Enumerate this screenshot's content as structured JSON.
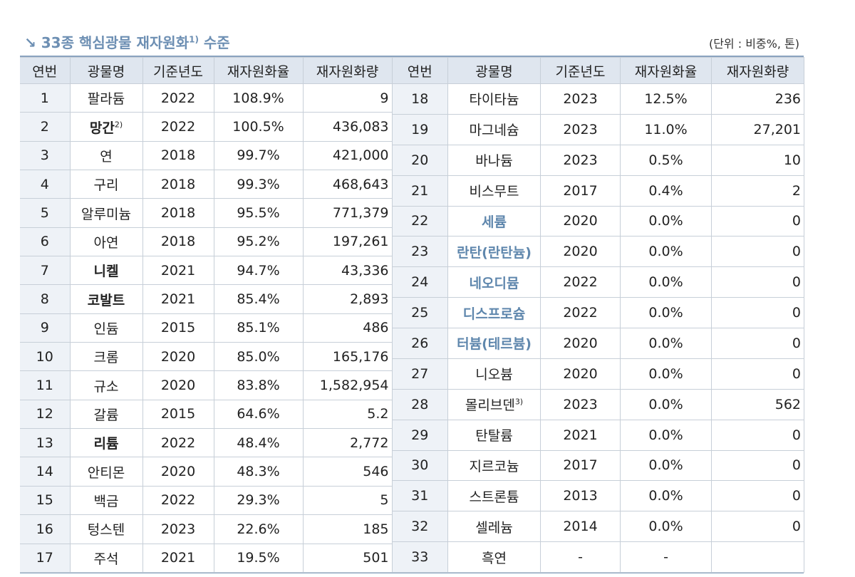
{
  "header": {
    "title": "33종 핵심광물 재자원화",
    "title_note": "1)",
    "title_suffix": "수준",
    "unit": "(단위 : 비중%, 톤)"
  },
  "columns": [
    "연번",
    "광물명",
    "기준년도",
    "재자원화율",
    "재자원화량"
  ],
  "left": {
    "rows": [
      {
        "no": "1",
        "name": "팔라듐",
        "year": "2022",
        "rate": "108.9%",
        "amount": "9"
      },
      {
        "no": "2",
        "name": "망간",
        "note": "2)",
        "style": "bold",
        "year": "2022",
        "rate": "100.5%",
        "amount": "436,083"
      },
      {
        "no": "3",
        "name": "연",
        "year": "2018",
        "rate": "99.7%",
        "amount": "421,000"
      },
      {
        "no": "4",
        "name": "구리",
        "year": "2018",
        "rate": "99.3%",
        "amount": "468,643"
      },
      {
        "no": "5",
        "name": "알루미늄",
        "year": "2018",
        "rate": "95.5%",
        "amount": "771,379"
      },
      {
        "no": "6",
        "name": "아연",
        "year": "2018",
        "rate": "95.2%",
        "amount": "197,261"
      },
      {
        "no": "7",
        "name": "니켈",
        "style": "bold",
        "year": "2021",
        "rate": "94.7%",
        "amount": "43,336"
      },
      {
        "no": "8",
        "name": "코발트",
        "style": "bold",
        "year": "2021",
        "rate": "85.4%",
        "amount": "2,893"
      },
      {
        "no": "9",
        "name": "인듐",
        "year": "2015",
        "rate": "85.1%",
        "amount": "486"
      },
      {
        "no": "10",
        "name": "크롬",
        "year": "2020",
        "rate": "85.0%",
        "amount": "165,176"
      },
      {
        "no": "11",
        "name": "규소",
        "year": "2020",
        "rate": "83.8%",
        "amount": "1,582,954"
      },
      {
        "no": "12",
        "name": "갈륨",
        "year": "2015",
        "rate": "64.6%",
        "amount": "5.2"
      },
      {
        "no": "13",
        "name": "리튬",
        "style": "bold",
        "year": "2022",
        "rate": "48.4%",
        "amount": "2,772"
      },
      {
        "no": "14",
        "name": "안티몬",
        "year": "2020",
        "rate": "48.3%",
        "amount": "546"
      },
      {
        "no": "15",
        "name": "백금",
        "year": "2022",
        "rate": "29.3%",
        "amount": "5"
      },
      {
        "no": "16",
        "name": "텅스텐",
        "year": "2023",
        "rate": "22.6%",
        "amount": "185"
      },
      {
        "no": "17",
        "name": "주석",
        "year": "2021",
        "rate": "19.5%",
        "amount": "501"
      }
    ]
  },
  "right": {
    "rows": [
      {
        "no": "18",
        "name": "타이타늄",
        "year": "2023",
        "rate": "12.5%",
        "amount": "236"
      },
      {
        "no": "19",
        "name": "마그네슘",
        "year": "2023",
        "rate": "11.0%",
        "amount": "27,201"
      },
      {
        "no": "20",
        "name": "바나듐",
        "year": "2023",
        "rate": "0.5%",
        "amount": "10"
      },
      {
        "no": "21",
        "name": "비스무트",
        "year": "2017",
        "rate": "0.4%",
        "amount": "2"
      },
      {
        "no": "22",
        "name": "세륨",
        "style": "highlight",
        "year": "2020",
        "rate": "0.0%",
        "amount": "0"
      },
      {
        "no": "23",
        "name": "란탄(란탄늄)",
        "style": "highlight",
        "year": "2020",
        "rate": "0.0%",
        "amount": "0"
      },
      {
        "no": "24",
        "name": "네오디뮴",
        "style": "highlight",
        "year": "2022",
        "rate": "0.0%",
        "amount": "0"
      },
      {
        "no": "25",
        "name": "디스프로슘",
        "style": "highlight",
        "year": "2022",
        "rate": "0.0%",
        "amount": "0"
      },
      {
        "no": "26",
        "name": "터븀(테르븀)",
        "style": "highlight",
        "year": "2020",
        "rate": "0.0%",
        "amount": "0"
      },
      {
        "no": "27",
        "name": "니오븀",
        "year": "2020",
        "rate": "0.0%",
        "amount": "0"
      },
      {
        "no": "28",
        "name": "몰리브덴",
        "note": "3)",
        "year": "2023",
        "rate": "0.0%",
        "amount": "562"
      },
      {
        "no": "29",
        "name": "탄탈륨",
        "year": "2021",
        "rate": "0.0%",
        "amount": "0"
      },
      {
        "no": "30",
        "name": "지르코늄",
        "year": "2017",
        "rate": "0.0%",
        "amount": "0"
      },
      {
        "no": "31",
        "name": "스트론튬",
        "year": "2013",
        "rate": "0.0%",
        "amount": "0"
      },
      {
        "no": "32",
        "name": "셀레늄",
        "year": "2014",
        "rate": "0.0%",
        "amount": "0"
      },
      {
        "no": "33",
        "name": "흑연",
        "year": "-",
        "rate": "-"
      }
    ]
  }
}
